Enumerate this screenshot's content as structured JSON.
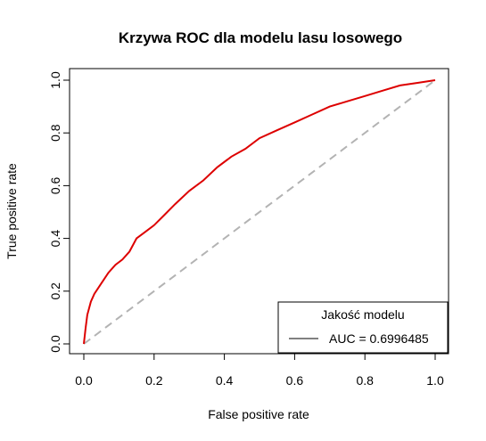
{
  "chart_data": {
    "type": "line",
    "title": "Krzywa ROC dla modelu lasu losowego",
    "xlabel": "False positive rate",
    "ylabel": "True positive rate",
    "xlim": [
      0,
      1
    ],
    "ylim": [
      0,
      1
    ],
    "x_ticks": [
      "0.0",
      "0.2",
      "0.4",
      "0.6",
      "0.8",
      "1.0"
    ],
    "y_ticks": [
      "0.0",
      "0.2",
      "0.4",
      "0.6",
      "0.8",
      "1.0"
    ],
    "grid": false,
    "legend": {
      "title": "Jakość modelu",
      "entry": "AUC = 0.6996485",
      "position": "bottom-right"
    },
    "colors": {
      "roc": "#dd0000",
      "diagonal": "#b3b3b3"
    },
    "series": [
      {
        "x": [
          0,
          0.005,
          0.01,
          0.02,
          0.03,
          0.05,
          0.07,
          0.09,
          0.11,
          0.13,
          0.15,
          0.17,
          0.2,
          0.23,
          0.26,
          0.3,
          0.34,
          0.38,
          0.42,
          0.46,
          0.5,
          0.55,
          0.6,
          0.65,
          0.7,
          0.75,
          0.8,
          0.85,
          0.9,
          0.95,
          1.0
        ],
        "y": [
          0,
          0.06,
          0.11,
          0.16,
          0.19,
          0.23,
          0.27,
          0.3,
          0.32,
          0.35,
          0.4,
          0.42,
          0.45,
          0.49,
          0.53,
          0.58,
          0.62,
          0.67,
          0.71,
          0.74,
          0.78,
          0.81,
          0.84,
          0.87,
          0.9,
          0.92,
          0.94,
          0.96,
          0.98,
          0.99,
          1.0
        ]
      },
      {
        "x": [
          0,
          1
        ],
        "y": [
          0,
          1
        ]
      }
    ]
  }
}
